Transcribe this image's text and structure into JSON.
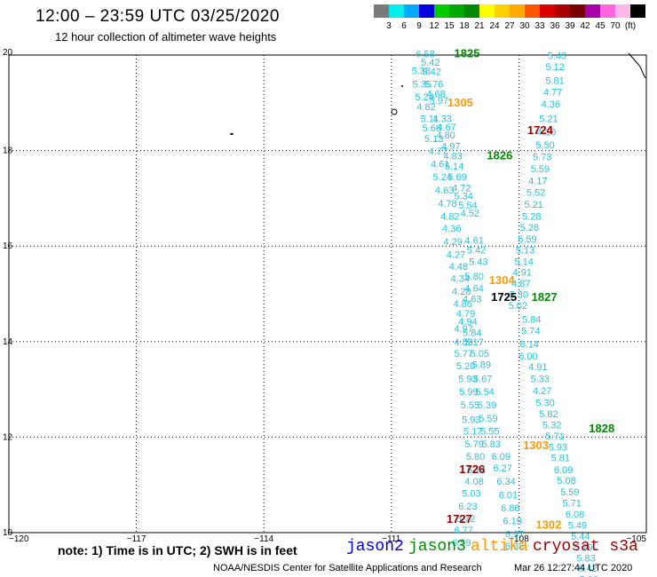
{
  "header": {
    "title": "12:00 – 23:59 UTC 03/25/2020",
    "subtitle": "12 hour collection of altimeter wave heights"
  },
  "colorbar": {
    "colors": [
      "#7a7a7a",
      "#00eeee",
      "#00aaff",
      "#0000dd",
      "#00cc00",
      "#00aa00",
      "#008800",
      "#ffff00",
      "#ffd000",
      "#ffaa00",
      "#ff5500",
      "#dd0000",
      "#aa0000",
      "#770000",
      "#aa00aa",
      "#ff66dd",
      "#ffb6e8",
      "#000000"
    ],
    "labels": [
      "3",
      "6",
      "9",
      "12",
      "15",
      "18",
      "21",
      "24",
      "27",
      "30",
      "33",
      "36",
      "39",
      "42",
      "45",
      "70",
      "(ft)"
    ]
  },
  "axes": {
    "x_ticks": [
      "−120",
      "−117",
      "−114",
      "−111",
      "−108",
      "−105"
    ],
    "y_ticks": [
      "20",
      "18",
      "16",
      "14",
      "12",
      "10"
    ]
  },
  "footer": {
    "note": "note: 1) Time is in UTC; 2) SWH is in feet",
    "satellites": [
      {
        "name": "jason2",
        "color": "#0000cc"
      },
      {
        "name": "jason3",
        "color": "#008800"
      },
      {
        "name": "altika",
        "color": "#ff9900"
      },
      {
        "name": "cryosat s3a",
        "color": "#990000"
      }
    ],
    "credit": "NOAA/NESDIS Center for Satellite Applications and Research",
    "timestamp": "Mar 26 12:27:44 UTC 2020"
  },
  "time_labels": [
    {
      "text": "1825",
      "color": "#008800",
      "lon": -109.22,
      "lat": 19.95
    },
    {
      "text": "1305",
      "color": "#ff9900",
      "lon": -109.38,
      "lat": 18.92
    },
    {
      "text": "1724",
      "color": "#990000",
      "lon": -107.5,
      "lat": 18.35
    },
    {
      "text": "1826",
      "color": "#008800",
      "lon": -108.45,
      "lat": 17.82
    },
    {
      "text": "1304",
      "color": "#ff9900",
      "lon": -108.4,
      "lat": 15.2
    },
    {
      "text": "1725",
      "color": "#000000",
      "lon": -108.35,
      "lat": 14.85
    },
    {
      "text": "1827",
      "color": "#008800",
      "lon": -107.4,
      "lat": 14.85
    },
    {
      "text": "1828",
      "color": "#008800",
      "lon": -106.05,
      "lat": 12.1
    },
    {
      "text": "1303",
      "color": "#ff9900",
      "lon": -107.6,
      "lat": 11.75
    },
    {
      "text": "1726",
      "color": "#990000",
      "lon": -109.1,
      "lat": 11.25
    },
    {
      "text": "1727",
      "color": "#990000",
      "lon": -109.4,
      "lat": 10.2
    },
    {
      "text": "1302",
      "color": "#ff9900",
      "lon": -107.3,
      "lat": 10.08
    }
  ],
  "wave_heights": [
    {
      "v": "6.58",
      "lon": -110.2,
      "lat": 19.95
    },
    {
      "v": "5.42",
      "lon": -110.08,
      "lat": 19.78
    },
    {
      "v": "5.38",
      "lon": -110.3,
      "lat": 19.6
    },
    {
      "v": "5.42",
      "lon": -110.05,
      "lat": 19.58
    },
    {
      "v": "5.35",
      "lon": -110.28,
      "lat": 19.32
    },
    {
      "v": "5.76",
      "lon": -110.0,
      "lat": 19.32
    },
    {
      "v": "4.68",
      "lon": -109.95,
      "lat": 19.12
    },
    {
      "v": "5.24",
      "lon": -110.22,
      "lat": 19.05
    },
    {
      "v": "5.97",
      "lon": -109.88,
      "lat": 18.98
    },
    {
      "v": "4.82",
      "lon": -110.18,
      "lat": 18.85
    },
    {
      "v": "5.11",
      "lon": -110.1,
      "lat": 18.6
    },
    {
      "v": "4.33",
      "lon": -109.8,
      "lat": 18.6
    },
    {
      "v": "5.66",
      "lon": -110.05,
      "lat": 18.4
    },
    {
      "v": "4.67",
      "lon": -109.7,
      "lat": 18.42
    },
    {
      "v": "4.80",
      "lon": -109.72,
      "lat": 18.25
    },
    {
      "v": "5.13",
      "lon": -110.0,
      "lat": 18.18
    },
    {
      "v": "4.97",
      "lon": -109.6,
      "lat": 18.02
    },
    {
      "v": "4.77",
      "lon": -109.9,
      "lat": 17.92
    },
    {
      "v": "4.83",
      "lon": -109.55,
      "lat": 17.82
    },
    {
      "v": "4.61",
      "lon": -109.85,
      "lat": 17.65
    },
    {
      "v": "5.14",
      "lon": -109.52,
      "lat": 17.6
    },
    {
      "v": "5.24",
      "lon": -109.8,
      "lat": 17.38
    },
    {
      "v": "5.69",
      "lon": -109.45,
      "lat": 17.38
    },
    {
      "v": "4.63",
      "lon": -109.75,
      "lat": 17.1
    },
    {
      "v": "4.72",
      "lon": -109.35,
      "lat": 17.15
    },
    {
      "v": "5.34",
      "lon": -109.3,
      "lat": 16.98
    },
    {
      "v": "4.78",
      "lon": -109.68,
      "lat": 16.82
    },
    {
      "v": "5.54",
      "lon": -109.2,
      "lat": 16.78
    },
    {
      "v": "4.82",
      "lon": -109.62,
      "lat": 16.55
    },
    {
      "v": "4.52",
      "lon": -109.15,
      "lat": 16.62
    },
    {
      "v": "4.36",
      "lon": -109.58,
      "lat": 16.3
    },
    {
      "v": "4.29",
      "lon": -109.55,
      "lat": 16.02
    },
    {
      "v": "4.61",
      "lon": -109.05,
      "lat": 16.05
    },
    {
      "v": "4.27",
      "lon": -109.48,
      "lat": 15.75
    },
    {
      "v": "5.42",
      "lon": -109.0,
      "lat": 15.85
    },
    {
      "v": "4.48",
      "lon": -109.42,
      "lat": 15.5
    },
    {
      "v": "5.43",
      "lon": -108.95,
      "lat": 15.6
    },
    {
      "v": "4.34",
      "lon": -109.38,
      "lat": 15.25
    },
    {
      "v": "5.80",
      "lon": -109.05,
      "lat": 15.3
    },
    {
      "v": "4.28",
      "lon": -109.35,
      "lat": 14.98
    },
    {
      "v": "4.64",
      "lon": -109.05,
      "lat": 15.05
    },
    {
      "v": "4.86",
      "lon": -109.32,
      "lat": 14.72
    },
    {
      "v": "4.63",
      "lon": -109.1,
      "lat": 14.82
    },
    {
      "v": "4.79",
      "lon": -109.25,
      "lat": 14.52
    },
    {
      "v": "4.94",
      "lon": -109.2,
      "lat": 14.35
    },
    {
      "v": "4.97",
      "lon": -109.3,
      "lat": 14.2
    },
    {
      "v": "5.84",
      "lon": -109.1,
      "lat": 14.12
    },
    {
      "v": "4.89",
      "lon": -109.3,
      "lat": 13.92
    },
    {
      "v": "5.17",
      "lon": -109.05,
      "lat": 13.92
    },
    {
      "v": "5.77",
      "lon": -109.3,
      "lat": 13.68
    },
    {
      "v": "5.05",
      "lon": -108.92,
      "lat": 13.68
    },
    {
      "v": "5.20",
      "lon": -109.25,
      "lat": 13.42
    },
    {
      "v": "5.89",
      "lon": -108.88,
      "lat": 13.45
    },
    {
      "v": "5.93",
      "lon": -109.2,
      "lat": 13.15
    },
    {
      "v": "5.67",
      "lon": -108.85,
      "lat": 13.15
    },
    {
      "v": "5.99",
      "lon": -109.18,
      "lat": 12.88
    },
    {
      "v": "5.54",
      "lon": -108.8,
      "lat": 12.88
    },
    {
      "v": "5.55",
      "lon": -109.15,
      "lat": 12.6
    },
    {
      "v": "5.39",
      "lon": -108.75,
      "lat": 12.6
    },
    {
      "v": "5.93",
      "lon": -109.12,
      "lat": 12.3
    },
    {
      "v": "5.59",
      "lon": -108.72,
      "lat": 12.32
    },
    {
      "v": "5.17",
      "lon": -109.08,
      "lat": 12.05
    },
    {
      "v": "5.55",
      "lon": -108.68,
      "lat": 12.05
    },
    {
      "v": "5.79",
      "lon": -109.05,
      "lat": 11.78
    },
    {
      "v": "5.83",
      "lon": -108.65,
      "lat": 11.78
    },
    {
      "v": "5.80",
      "lon": -109.02,
      "lat": 11.52
    },
    {
      "v": "6.09",
      "lon": -108.42,
      "lat": 11.52
    },
    {
      "v": "5.74",
      "lon": -109.0,
      "lat": 11.25
    },
    {
      "v": "6.27",
      "lon": -108.38,
      "lat": 11.28
    },
    {
      "v": "4.08",
      "lon": -109.05,
      "lat": 11.0
    },
    {
      "v": "6.34",
      "lon": -108.3,
      "lat": 11.0
    },
    {
      "v": "5.03",
      "lon": -109.12,
      "lat": 10.75
    },
    {
      "v": "6.01",
      "lon": -108.25,
      "lat": 10.72
    },
    {
      "v": "6.23",
      "lon": -109.2,
      "lat": 10.48
    },
    {
      "v": "6.86",
      "lon": -108.2,
      "lat": 10.45
    },
    {
      "v": "5.72",
      "lon": -109.25,
      "lat": 10.22
    },
    {
      "v": "6.19",
      "lon": -108.15,
      "lat": 10.18
    },
    {
      "v": "6.77",
      "lon": -109.3,
      "lat": 9.98
    },
    {
      "v": "6.97",
      "lon": -108.1,
      "lat": 9.9
    },
    {
      "v": "6.59",
      "lon": -109.35,
      "lat": 9.72
    },
    {
      "v": "6.38",
      "lon": -108.1,
      "lat": 9.65
    },
    {
      "v": "5.43",
      "lon": -107.1,
      "lat": 19.92
    },
    {
      "v": "5.12",
      "lon": -107.15,
      "lat": 19.68
    },
    {
      "v": "5.81",
      "lon": -107.15,
      "lat": 19.4
    },
    {
      "v": "4.77",
      "lon": -107.2,
      "lat": 19.15
    },
    {
      "v": "4.36",
      "lon": -107.25,
      "lat": 18.9
    },
    {
      "v": "5.21",
      "lon": -107.3,
      "lat": 18.6
    },
    {
      "v": "4.10",
      "lon": -107.35,
      "lat": 18.32
    },
    {
      "v": "5.50",
      "lon": -107.38,
      "lat": 18.05
    },
    {
      "v": "5.73",
      "lon": -107.45,
      "lat": 17.8
    },
    {
      "v": "5.59",
      "lon": -107.5,
      "lat": 17.55
    },
    {
      "v": "4.17",
      "lon": -107.55,
      "lat": 17.3
    },
    {
      "v": "5.52",
      "lon": -107.6,
      "lat": 17.05
    },
    {
      "v": "5.21",
      "lon": -107.65,
      "lat": 16.8
    },
    {
      "v": "5.28",
      "lon": -107.7,
      "lat": 16.55
    },
    {
      "v": "5.28",
      "lon": -107.75,
      "lat": 16.32
    },
    {
      "v": "5.59",
      "lon": -107.8,
      "lat": 16.08
    },
    {
      "v": "5.13",
      "lon": -107.85,
      "lat": 15.85
    },
    {
      "v": "5.14",
      "lon": -107.88,
      "lat": 15.6
    },
    {
      "v": "4.91",
      "lon": -107.92,
      "lat": 15.38
    },
    {
      "v": "4.87",
      "lon": -107.95,
      "lat": 15.15
    },
    {
      "v": "5.30",
      "lon": -108.0,
      "lat": 14.92
    },
    {
      "v": "5.02",
      "lon": -108.02,
      "lat": 14.68
    },
    {
      "v": "5.84",
      "lon": -107.7,
      "lat": 14.4
    },
    {
      "v": "5.74",
      "lon": -107.72,
      "lat": 14.15
    },
    {
      "v": "6.14",
      "lon": -107.75,
      "lat": 13.88
    },
    {
      "v": "6.00",
      "lon": -107.78,
      "lat": 13.62
    },
    {
      "v": "4.91",
      "lon": -107.55,
      "lat": 13.4
    },
    {
      "v": "5.33",
      "lon": -107.5,
      "lat": 13.15
    },
    {
      "v": "4.27",
      "lon": -107.45,
      "lat": 12.9
    },
    {
      "v": "5.30",
      "lon": -107.38,
      "lat": 12.65
    },
    {
      "v": "5.82",
      "lon": -107.3,
      "lat": 12.42
    },
    {
      "v": "5.32",
      "lon": -107.22,
      "lat": 12.18
    },
    {
      "v": "5.71",
      "lon": -107.15,
      "lat": 11.95
    },
    {
      "v": "5.93",
      "lon": -107.08,
      "lat": 11.72
    },
    {
      "v": "5.81",
      "lon": -107.02,
      "lat": 11.5
    },
    {
      "v": "6.09",
      "lon": -106.95,
      "lat": 11.25
    },
    {
      "v": "5.08",
      "lon": -106.88,
      "lat": 11.02
    },
    {
      "v": "5.59",
      "lon": -106.8,
      "lat": 10.78
    },
    {
      "v": "5.71",
      "lon": -106.75,
      "lat": 10.55
    },
    {
      "v": "6.08",
      "lon": -106.68,
      "lat": 10.32
    },
    {
      "v": "5.49",
      "lon": -106.62,
      "lat": 10.08
    },
    {
      "v": "5.44",
      "lon": -106.55,
      "lat": 9.85
    },
    {
      "v": "5.79",
      "lon": -106.48,
      "lat": 9.62
    },
    {
      "v": "5.83",
      "lon": -106.42,
      "lat": 9.4
    },
    {
      "v": "6.42",
      "lon": -106.38,
      "lat": 9.18
    },
    {
      "v": "5.90",
      "lon": -106.35,
      "lat": 8.95
    }
  ]
}
